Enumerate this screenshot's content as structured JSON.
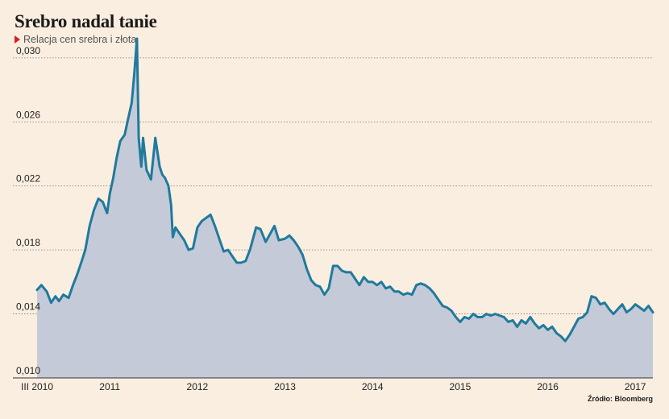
{
  "chart_data": {
    "type": "area",
    "title": "Srebro nadal tanie",
    "subtitle": "Relacja cen srebra i złota",
    "source": "Źródło: Bloomberg",
    "xlabel": "",
    "ylabel": "",
    "ylim": [
      0.01,
      0.031
    ],
    "yticks": [
      {
        "value": 0.01,
        "label": "0,010"
      },
      {
        "value": 0.014,
        "label": "0,014"
      },
      {
        "value": 0.018,
        "label": "0,018"
      },
      {
        "value": 0.022,
        "label": "0,022"
      },
      {
        "value": 0.026,
        "label": "0,026"
      },
      {
        "value": 0.03,
        "label": "0,030"
      }
    ],
    "xlim": [
      2010.17,
      2017.2
    ],
    "xticks": [
      {
        "value": 2010.17,
        "label": "III 2010"
      },
      {
        "value": 2011.0,
        "label": "2011"
      },
      {
        "value": 2012.0,
        "label": "2012"
      },
      {
        "value": 2013.0,
        "label": "2013"
      },
      {
        "value": 2014.0,
        "label": "2014"
      },
      {
        "value": 2015.0,
        "label": "2015"
      },
      {
        "value": 2016.0,
        "label": "2016"
      },
      {
        "value": 2017.0,
        "label": "2017"
      }
    ],
    "grid": true,
    "colors": {
      "line": "#1f7a9c",
      "fill": "#c5cad8",
      "grid": "#777777"
    },
    "series": [
      {
        "x": [
          2010.17,
          2010.22,
          2010.28,
          2010.33,
          2010.38,
          2010.42,
          2010.47,
          2010.53,
          2010.58,
          2010.63,
          2010.68,
          2010.72,
          2010.77,
          2010.82,
          2010.87,
          2010.92,
          2010.97,
          2011.0,
          2011.04,
          2011.08,
          2011.12,
          2011.17,
          2011.21,
          2011.25,
          2011.28,
          2011.31,
          2011.33,
          2011.36,
          2011.38,
          2011.42,
          2011.47,
          2011.52,
          2011.57,
          2011.6,
          2011.63,
          2011.67,
          2011.7,
          2011.72,
          2011.75,
          2011.8,
          2011.85,
          2011.9,
          2011.95,
          2012.0,
          2012.05,
          2012.1,
          2012.15,
          2012.2,
          2012.25,
          2012.3,
          2012.35,
          2012.4,
          2012.45,
          2012.5,
          2012.55,
          2012.6,
          2012.67,
          2012.72,
          2012.78,
          2012.83,
          2012.88,
          2012.93,
          2013.0,
          2013.05,
          2013.1,
          2013.15,
          2013.2,
          2013.25,
          2013.3,
          2013.35,
          2013.4,
          2013.45,
          2013.5,
          2013.55,
          2013.6,
          2013.65,
          2013.7,
          2013.75,
          2013.8,
          2013.85,
          2013.9,
          2013.95,
          2014.0,
          2014.05,
          2014.1,
          2014.15,
          2014.2,
          2014.25,
          2014.3,
          2014.35,
          2014.4,
          2014.45,
          2014.5,
          2014.55,
          2014.6,
          2014.65,
          2014.7,
          2014.75,
          2014.8,
          2014.85,
          2014.9,
          2014.95,
          2015.0,
          2015.05,
          2015.1,
          2015.15,
          2015.2,
          2015.25,
          2015.3,
          2015.35,
          2015.4,
          2015.45,
          2015.5,
          2015.55,
          2015.6,
          2015.65,
          2015.7,
          2015.75,
          2015.8,
          2015.85,
          2015.9,
          2015.95,
          2016.0,
          2016.05,
          2016.1,
          2016.15,
          2016.2,
          2016.25,
          2016.3,
          2016.35,
          2016.4,
          2016.45,
          2016.5,
          2016.55,
          2016.6,
          2016.65,
          2016.7,
          2016.75,
          2016.8,
          2016.85,
          2016.9,
          2016.95,
          2017.0,
          2017.05,
          2017.1,
          2017.15,
          2017.2
        ],
        "values": [
          0.0155,
          0.0158,
          0.0154,
          0.0147,
          0.0151,
          0.0148,
          0.0152,
          0.015,
          0.0158,
          0.0165,
          0.0173,
          0.018,
          0.0195,
          0.0205,
          0.0212,
          0.021,
          0.0203,
          0.0215,
          0.0225,
          0.0238,
          0.0248,
          0.0252,
          0.0262,
          0.0272,
          0.029,
          0.0312,
          0.025,
          0.0232,
          0.025,
          0.023,
          0.0224,
          0.025,
          0.0232,
          0.0227,
          0.0225,
          0.022,
          0.0208,
          0.0188,
          0.0194,
          0.019,
          0.0186,
          0.018,
          0.0181,
          0.0194,
          0.0198,
          0.02,
          0.0202,
          0.0195,
          0.0187,
          0.0179,
          0.018,
          0.0176,
          0.0172,
          0.0172,
          0.0173,
          0.018,
          0.0194,
          0.0193,
          0.0185,
          0.019,
          0.0195,
          0.0186,
          0.0187,
          0.0189,
          0.0186,
          0.0182,
          0.0177,
          0.0168,
          0.0161,
          0.0158,
          0.0157,
          0.0152,
          0.0156,
          0.017,
          0.017,
          0.0167,
          0.0166,
          0.0166,
          0.0162,
          0.0158,
          0.0163,
          0.016,
          0.016,
          0.0158,
          0.016,
          0.0156,
          0.0157,
          0.0154,
          0.0154,
          0.0152,
          0.0153,
          0.0152,
          0.0158,
          0.0159,
          0.0158,
          0.0156,
          0.0153,
          0.0149,
          0.0145,
          0.0144,
          0.0142,
          0.0138,
          0.0135,
          0.0138,
          0.0137,
          0.014,
          0.0138,
          0.0138,
          0.014,
          0.0139,
          0.014,
          0.0139,
          0.0138,
          0.0135,
          0.0136,
          0.0132,
          0.0136,
          0.0134,
          0.0138,
          0.0134,
          0.0131,
          0.0133,
          0.013,
          0.0132,
          0.0128,
          0.0126,
          0.0123,
          0.0127,
          0.0132,
          0.0137,
          0.0138,
          0.0141,
          0.0151,
          0.015,
          0.0146,
          0.0147,
          0.0143,
          0.014,
          0.0143,
          0.0146,
          0.0141,
          0.0143,
          0.0146,
          0.0144,
          0.0142,
          0.0145,
          0.0141
        ]
      }
    ]
  }
}
